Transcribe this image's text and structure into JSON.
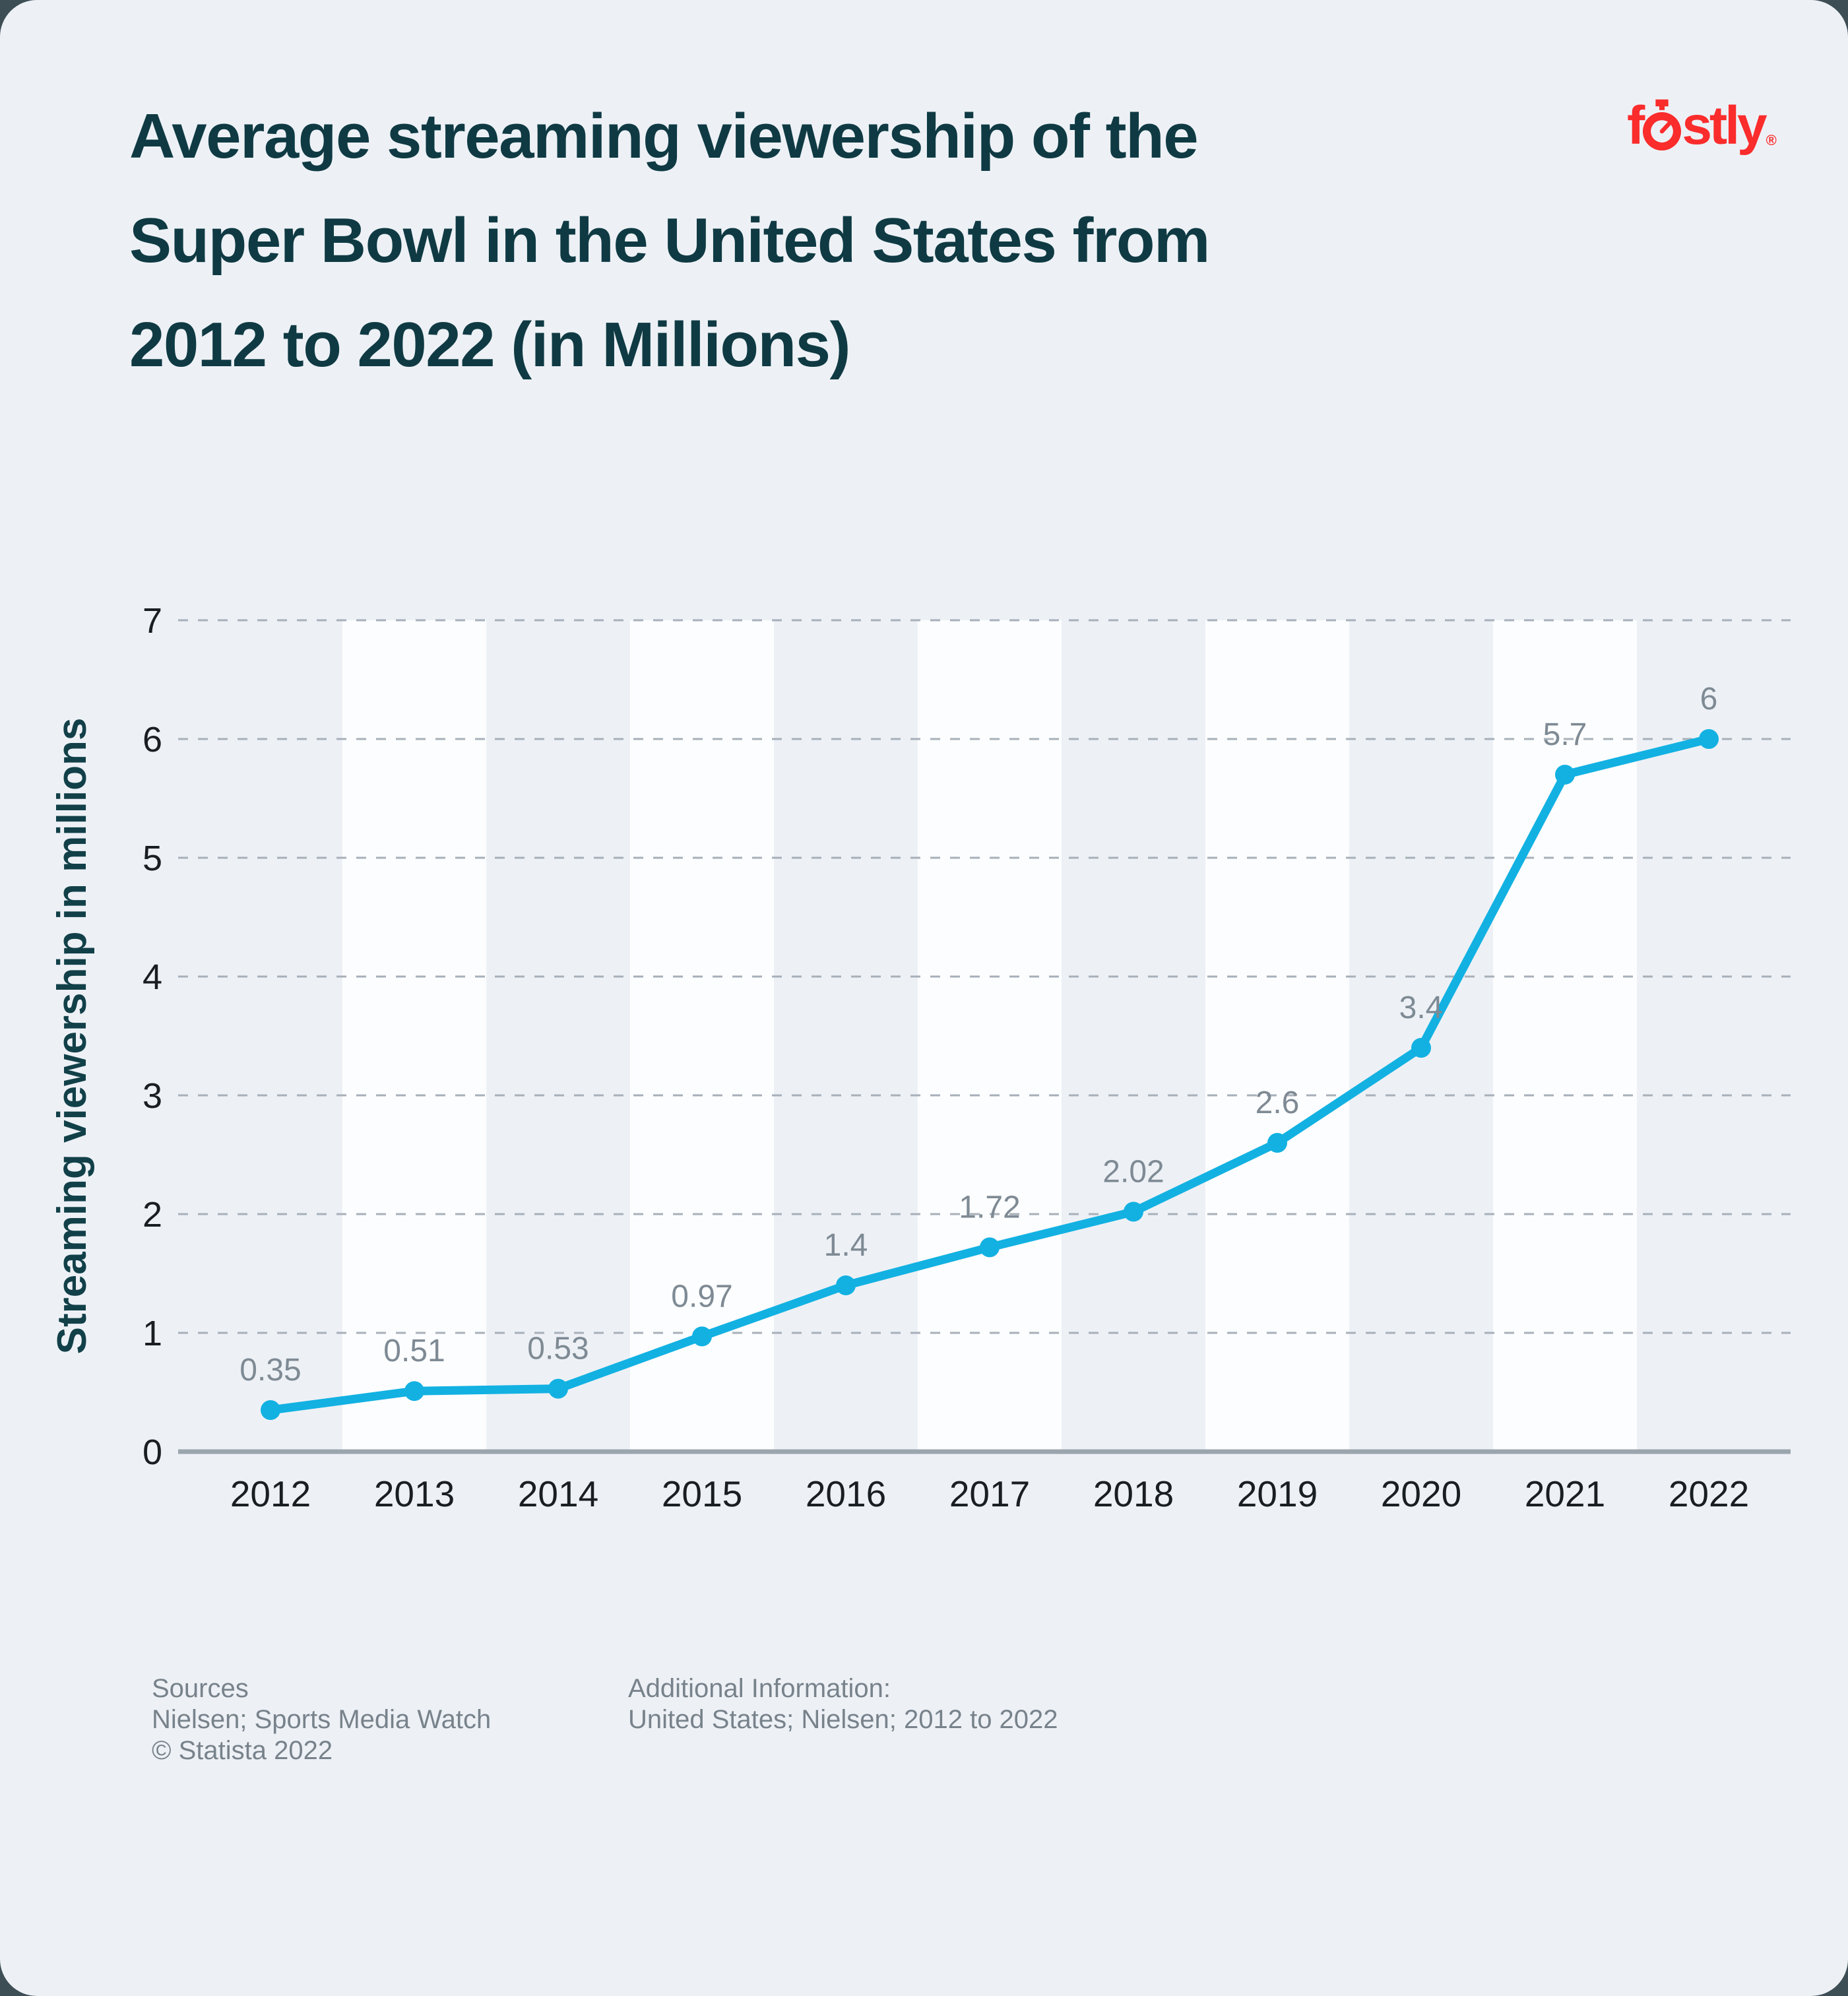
{
  "page": {
    "outer_background": "#3d4f55",
    "card_background": "#edf1f6"
  },
  "header": {
    "title_lines": [
      "Average streaming viewership of the",
      "Super Bowl in the United States from",
      "2012 to 2022 (in Millions)"
    ],
    "title_color": "#0f3a43"
  },
  "logo": {
    "brand": "fastly",
    "registered_mark": "®",
    "color": "#fa2c2c",
    "icon": "stopwatch-icon"
  },
  "chart_data": {
    "type": "line",
    "title": "Average streaming viewership of the Super Bowl in the United States from 2012 to 2022 (in Millions)",
    "categories": [
      "2012",
      "2013",
      "2014",
      "2015",
      "2016",
      "2017",
      "2018",
      "2019",
      "2020",
      "2021",
      "2022"
    ],
    "values": [
      0.35,
      0.51,
      0.53,
      0.97,
      1.4,
      1.72,
      2.02,
      2.6,
      3.4,
      5.7,
      6
    ],
    "point_labels": [
      "0.35",
      "0.51",
      "0.53",
      "0.97",
      "1.4",
      "1.72",
      "2.02",
      "2.6",
      "3.4",
      "5.7",
      "6"
    ],
    "xlabel": "",
    "ylabel": "Streaming viewership in millions",
    "ylim": [
      0,
      7
    ],
    "yticks": [
      0,
      1,
      2,
      3,
      4,
      5,
      6,
      7
    ],
    "grid": "horizontal dashed gridlines at 1-7, solid baseline at 0",
    "legend": false,
    "band_categories": [
      "2013",
      "2015",
      "2017",
      "2019",
      "2021"
    ],
    "colors": {
      "line": "#12b1e2",
      "marker": "#12b1e2",
      "point_label": "#7e8a94",
      "gridline": "#a7b0b9",
      "axis_line": "#9ba5ae",
      "tick_label": "#191e23",
      "band": "#fcfdfe",
      "ylabel_color": "#124049"
    }
  },
  "footer": {
    "sources_title": "Sources",
    "sources_line1": "Nielsen; Sports Media Watch",
    "sources_line2": "© Statista 2022",
    "additional_title": "Additional Information:",
    "additional_line1": "United States; Nielsen; 2012 to 2022",
    "color": "#78828b"
  }
}
